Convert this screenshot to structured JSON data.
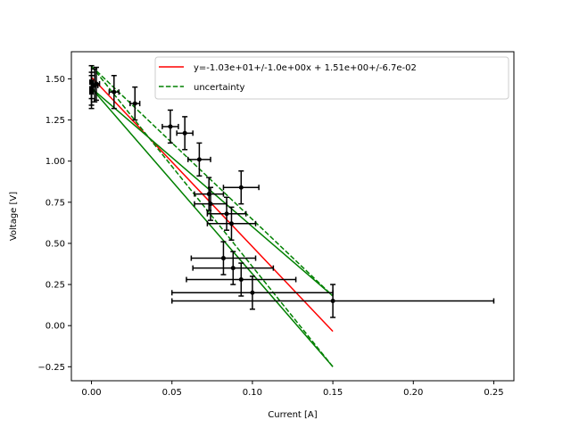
{
  "chart_data": {
    "type": "scatter",
    "xlabel": "Current [A]",
    "ylabel": "Voltage [V]",
    "xlim": [
      -0.0125,
      0.2625
    ],
    "ylim": [
      -0.335,
      1.665
    ],
    "x_ticks": [
      0.0,
      0.05,
      0.1,
      0.15,
      0.2,
      0.25
    ],
    "x_tick_labels": [
      "0.00",
      "0.05",
      "0.10",
      "0.15",
      "0.20",
      "0.25"
    ],
    "y_ticks": [
      -0.25,
      0.0,
      0.25,
      0.5,
      0.75,
      1.0,
      1.25,
      1.5
    ],
    "y_tick_labels": [
      "−0.25",
      "0.00",
      "0.25",
      "0.50",
      "0.75",
      "1.00",
      "1.25",
      "1.50"
    ],
    "grid": false,
    "legend_position": "upper right",
    "data_points": [
      {
        "x": 0.0,
        "y": 1.48,
        "xerr": 0.001,
        "yerr": 0.1
      },
      {
        "x": 0.0,
        "y": 1.44,
        "xerr": 0.001,
        "yerr": 0.1
      },
      {
        "x": 0.0,
        "y": 1.42,
        "xerr": 0.001,
        "yerr": 0.1
      },
      {
        "x": 0.002,
        "y": 1.46,
        "xerr": 0.002,
        "yerr": 0.1
      },
      {
        "x": 0.003,
        "y": 1.47,
        "xerr": 0.002,
        "yerr": 0.1
      },
      {
        "x": 0.014,
        "y": 1.42,
        "xerr": 0.003,
        "yerr": 0.1
      },
      {
        "x": 0.027,
        "y": 1.35,
        "xerr": 0.003,
        "yerr": 0.1
      },
      {
        "x": 0.049,
        "y": 1.21,
        "xerr": 0.005,
        "yerr": 0.1
      },
      {
        "x": 0.058,
        "y": 1.17,
        "xerr": 0.005,
        "yerr": 0.1
      },
      {
        "x": 0.067,
        "y": 1.01,
        "xerr": 0.007,
        "yerr": 0.1
      },
      {
        "x": 0.073,
        "y": 0.8,
        "xerr": 0.009,
        "yerr": 0.1
      },
      {
        "x": 0.074,
        "y": 0.74,
        "xerr": 0.01,
        "yerr": 0.1
      },
      {
        "x": 0.084,
        "y": 0.68,
        "xerr": 0.012,
        "yerr": 0.1
      },
      {
        "x": 0.087,
        "y": 0.62,
        "xerr": 0.015,
        "yerr": 0.1
      },
      {
        "x": 0.093,
        "y": 0.84,
        "xerr": 0.011,
        "yerr": 0.1
      },
      {
        "x": 0.082,
        "y": 0.41,
        "xerr": 0.02,
        "yerr": 0.1
      },
      {
        "x": 0.088,
        "y": 0.35,
        "xerr": 0.025,
        "yerr": 0.1
      },
      {
        "x": 0.093,
        "y": 0.28,
        "xerr": 0.034,
        "yerr": 0.1
      },
      {
        "x": 0.1,
        "y": 0.2,
        "xerr": 0.05,
        "yerr": 0.1
      },
      {
        "x": 0.15,
        "y": 0.15,
        "xerr": 0.1,
        "yerr": 0.1
      }
    ],
    "series": [
      {
        "name": "y=-1.03e+01+/-1.0e+00x + 1.51e+00+/-6.7e-02",
        "style": "solid",
        "color": "#ff0000",
        "segments": [
          [
            [
              0.0,
              1.51
            ],
            [
              0.15,
              -0.035
            ]
          ]
        ]
      },
      {
        "name": "uncertainty",
        "style": "dashed",
        "color": "#008000",
        "segments": [
          [
            [
              0.0,
              1.577
            ],
            [
              0.15,
              0.18
            ]
          ],
          [
            [
              0.0,
              1.577
            ],
            [
              0.15,
              -0.25
            ]
          ]
        ]
      },
      {
        "name": "",
        "style": "solid",
        "color": "#008000",
        "segments": [
          [
            [
              0.0,
              1.443
            ],
            [
              0.15,
              0.18
            ]
          ],
          [
            [
              0.0,
              1.443
            ],
            [
              0.15,
              -0.25
            ]
          ]
        ]
      }
    ]
  }
}
